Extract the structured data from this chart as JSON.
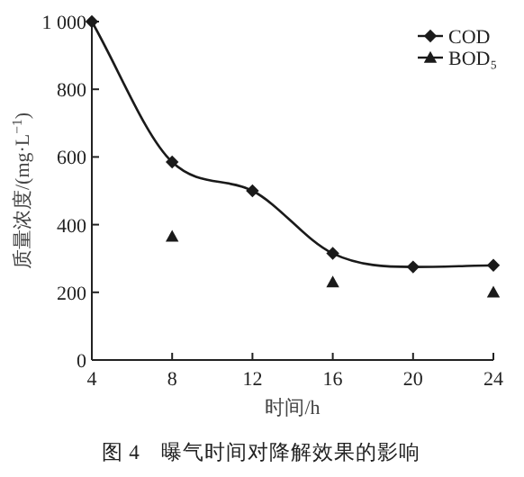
{
  "chart_data": {
    "type": "line",
    "title": "图 4　曝气时间对降解效果的影响",
    "xlabel": "时间/h",
    "ylabel": "质量浓度/(mg·L$^{−1}$)",
    "xlim": [
      4,
      24
    ],
    "xticks": [
      4,
      8,
      12,
      16,
      20,
      24
    ],
    "ylim": [
      0,
      1000
    ],
    "yticks": [
      0,
      200,
      400,
      600,
      800,
      {
        "value": 1000,
        "label": "1 000"
      }
    ],
    "grid": false,
    "legend": "top right",
    "series": [
      {
        "name": "COD",
        "type": "line",
        "marker": "diamond",
        "color": "#1a1a1a",
        "x": [
          4,
          8,
          12,
          16,
          20,
          24
        ],
        "values": [
          1000,
          585,
          500,
          315,
          275,
          280
        ]
      },
      {
        "name": "BOD₅",
        "type": "scatter",
        "marker": "triangle",
        "color": "#1a1a1a",
        "x": [
          8,
          16,
          24
        ],
        "values": [
          365,
          230,
          200
        ]
      }
    ]
  }
}
